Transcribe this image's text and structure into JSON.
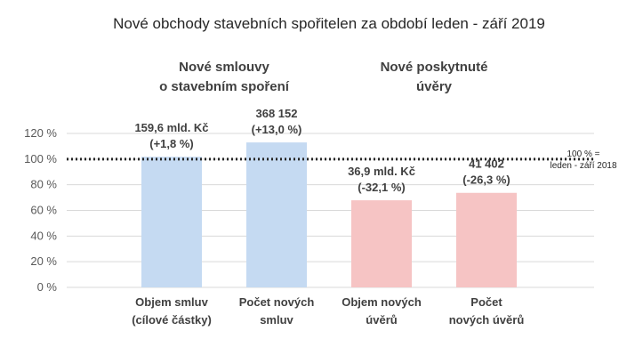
{
  "chart_data": {
    "type": "bar",
    "title": "Nové obchody stavebních spořitelen za období leden - září 2019",
    "group_labels": [
      [
        "Nové smlouvy",
        "o stavebním spoření"
      ],
      [
        "Nové poskytnuté",
        "úvěry"
      ]
    ],
    "categories": [
      [
        "Objem smluv",
        "(cílové částky)"
      ],
      [
        "Počet  nových",
        "smluv"
      ],
      [
        "Objem nových",
        "úvěrů"
      ],
      [
        "Počet",
        "nových úvěrů"
      ]
    ],
    "values": [
      101.8,
      113.0,
      67.9,
      73.7
    ],
    "data_labels": [
      [
        "159,6 mld. Kč",
        "(+1,8 %)"
      ],
      [
        "368 152",
        "(+13,0 %)"
      ],
      [
        "36,9 mld. Kč",
        "(-32,1 %)"
      ],
      [
        "41 402",
        "(-26,3 %)"
      ]
    ],
    "bar_colors": [
      "#c5daf2",
      "#c5daf2",
      "#f6c4c4",
      "#f6c4c4"
    ],
    "ylim": [
      0,
      120
    ],
    "yticks": [
      0,
      20,
      40,
      60,
      80,
      100,
      120
    ],
    "ytick_labels": [
      "0 %",
      "20 %",
      "40 %",
      "60 %",
      "80 %",
      "100 %",
      "120 %"
    ],
    "reference_line": {
      "value": 100,
      "label": [
        "100 % =",
        "leden - září 2018"
      ]
    },
    "grid": true,
    "xlabel": "",
    "ylabel": ""
  }
}
